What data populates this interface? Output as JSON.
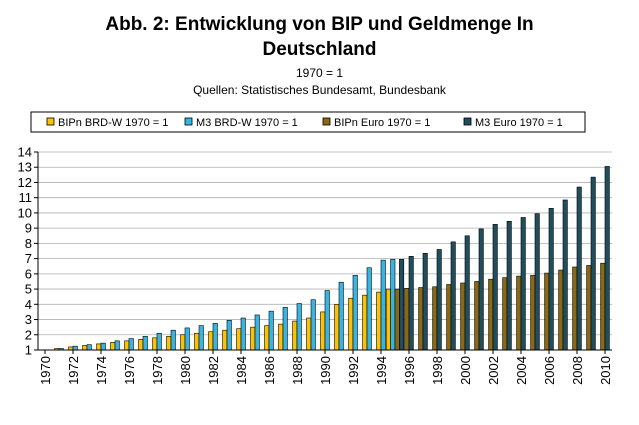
{
  "chart_data": {
    "type": "bar",
    "title": "Abb. 2: Entwicklung von BIP und Geldmenge In Deutschland",
    "title_line1": "Abb. 2: Entwicklung von BIP und Geldmenge In",
    "title_line2": "Deutschland",
    "subtitle": "1970 = 1",
    "source": "Quellen: Statistisches Bundesamt, Bundesbank",
    "xlabel": "",
    "ylabel": "",
    "ylim": [
      1,
      14
    ],
    "yticks": [
      1,
      2,
      3,
      4,
      5,
      6,
      7,
      8,
      9,
      10,
      11,
      12,
      13,
      14
    ],
    "grid": true,
    "legend_position": "top",
    "x": [
      1970,
      1971,
      1972,
      1973,
      1974,
      1975,
      1976,
      1977,
      1978,
      1979,
      1980,
      1981,
      1982,
      1983,
      1984,
      1985,
      1986,
      1987,
      1988,
      1989,
      1990,
      1991,
      1992,
      1993,
      1994,
      1995,
      1996,
      1997,
      1998,
      1999,
      2000,
      2001,
      2002,
      2003,
      2004,
      2005,
      2006,
      2007,
      2008,
      2009,
      2010
    ],
    "x_tick_labels": [
      "1970",
      "1972",
      "1974",
      "1976",
      "1978",
      "1980",
      "1982",
      "1984",
      "1986",
      "1988",
      "1990",
      "1992",
      "1994",
      "1996",
      "1998",
      "2000",
      "2002",
      "2004",
      "2006",
      "2008",
      "2010"
    ],
    "series": [
      {
        "name": "BIPn BRD-W 1970 = 1",
        "color": "#FFC000",
        "values": [
          1.0,
          1.1,
          1.2,
          1.3,
          1.4,
          1.5,
          1.6,
          1.7,
          1.8,
          1.9,
          2.0,
          2.1,
          2.2,
          2.3,
          2.4,
          2.5,
          2.6,
          2.7,
          2.9,
          3.1,
          3.5,
          4.0,
          4.4,
          4.6,
          4.8,
          5.0,
          null,
          null,
          null,
          null,
          null,
          null,
          null,
          null,
          null,
          null,
          null,
          null,
          null,
          null,
          null
        ]
      },
      {
        "name": "M3 BRD-W 1970 = 1",
        "color": "#33B6E6",
        "values": [
          1.0,
          1.1,
          1.25,
          1.35,
          1.45,
          1.6,
          1.75,
          1.9,
          2.1,
          2.3,
          2.45,
          2.6,
          2.75,
          2.95,
          3.1,
          3.3,
          3.55,
          3.8,
          4.05,
          4.3,
          4.9,
          5.45,
          5.9,
          6.4,
          6.9,
          6.95,
          null,
          null,
          null,
          null,
          null,
          null,
          null,
          null,
          null,
          null,
          null,
          null,
          null,
          null,
          null
        ]
      },
      {
        "name": "BIPn Euro 1970 = 1",
        "color": "#8B6914",
        "values": [
          null,
          null,
          null,
          null,
          null,
          null,
          null,
          null,
          null,
          null,
          null,
          null,
          null,
          null,
          null,
          null,
          null,
          null,
          null,
          null,
          null,
          null,
          null,
          null,
          null,
          5.0,
          5.05,
          5.1,
          5.15,
          5.3,
          5.4,
          5.5,
          5.65,
          5.75,
          5.85,
          5.9,
          6.05,
          6.25,
          6.45,
          6.55,
          6.7
        ]
      },
      {
        "name": "M3 Euro 1970 = 1",
        "color": "#1F4E5F",
        "values": [
          null,
          null,
          null,
          null,
          null,
          null,
          null,
          null,
          null,
          null,
          null,
          null,
          null,
          null,
          null,
          null,
          null,
          null,
          null,
          null,
          null,
          null,
          null,
          null,
          null,
          6.95,
          7.15,
          7.35,
          7.6,
          8.1,
          8.5,
          8.95,
          9.25,
          9.45,
          9.7,
          9.95,
          10.3,
          10.85,
          11.7,
          12.35,
          13.05
        ]
      }
    ]
  }
}
